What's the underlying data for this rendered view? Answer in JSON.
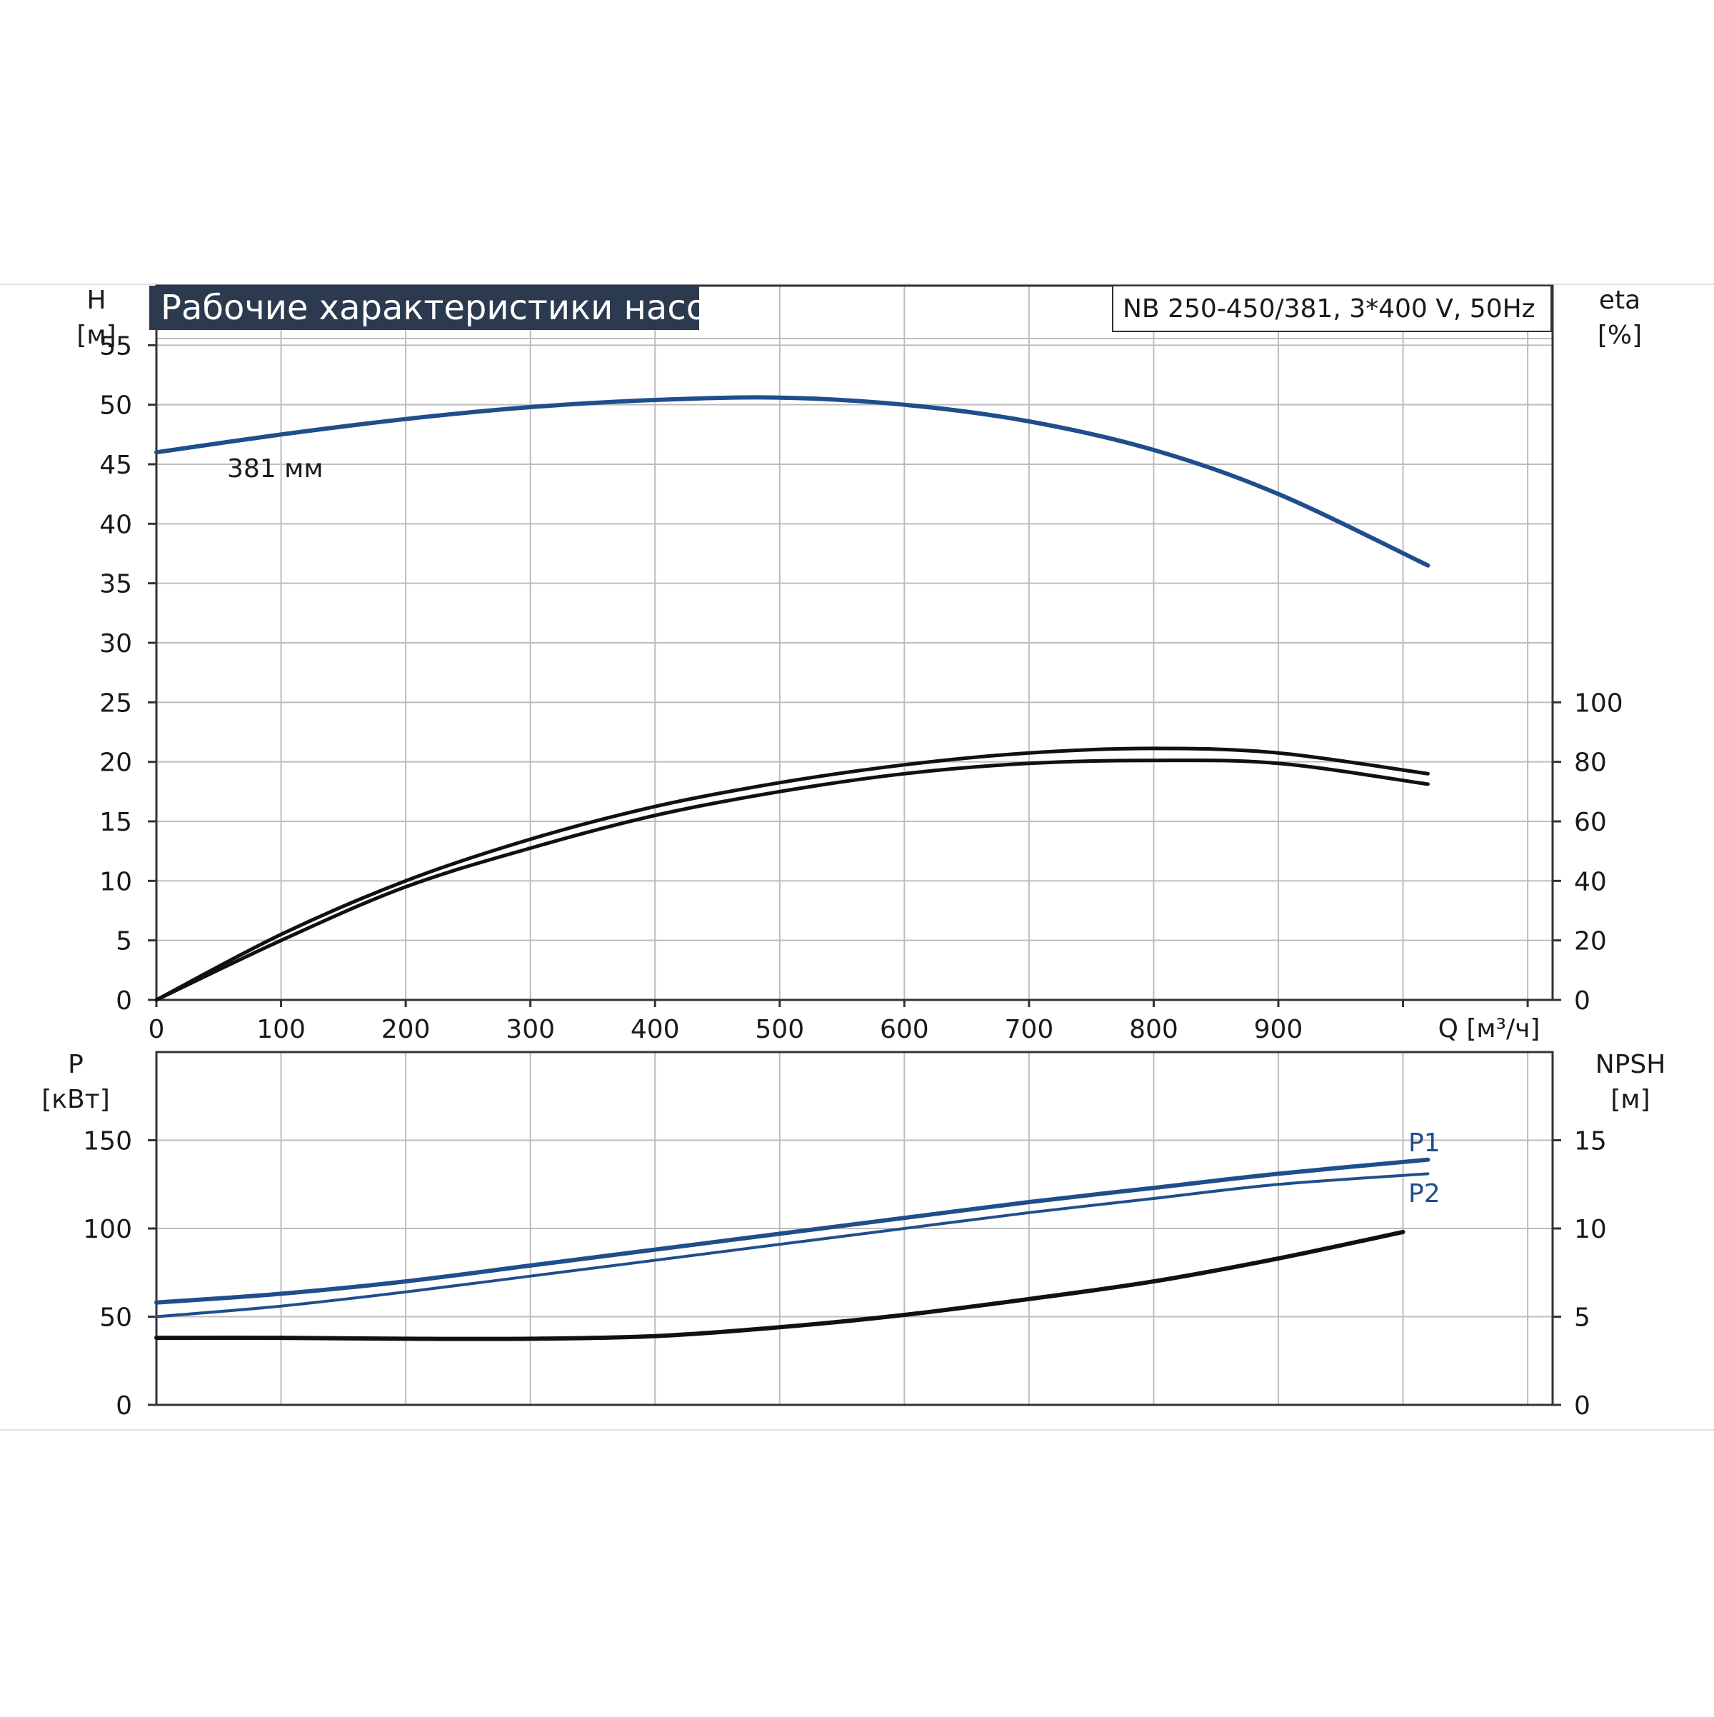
{
  "chart_data": {
    "type": "line",
    "title": "Рабочие характеристики насоса",
    "model_label": "NB 250-450/381, 3*400 V, 50Hz",
    "colors": {
      "blue": "#1f4e8c",
      "black": "#111111",
      "title_bg": "#2b3a4e",
      "grid": "#bdbdbd"
    },
    "top_panel": {
      "x_label": "Q [м³/ч]",
      "x_range": [
        0,
        1120
      ],
      "x_ticks": [
        "0",
        "100",
        "200",
        "300",
        "400",
        "500",
        "600",
        "700",
        "800",
        "900"
      ],
      "left_axis": {
        "label_line1": "H",
        "label_line2": "[м]",
        "range": [
          0,
          60
        ],
        "ticks": [
          "0",
          "5",
          "10",
          "15",
          "20",
          "25",
          "30",
          "35",
          "40",
          "45",
          "50",
          "55"
        ]
      },
      "right_axis": {
        "label_line1": "eta",
        "label_line2": "[%]",
        "range": [
          0,
          240
        ],
        "ticks": [
          "0",
          "20",
          "40",
          "60",
          "80",
          "100"
        ]
      },
      "series": [
        {
          "label": "381 мм",
          "axis": "left",
          "color": "blue",
          "x": [
            0,
            100,
            200,
            300,
            400,
            500,
            600,
            700,
            800,
            900,
            1020
          ],
          "y": [
            46,
            47.5,
            48.8,
            49.8,
            50.4,
            50.6,
            50.0,
            48.6,
            46.2,
            42.5,
            36.5
          ]
        },
        {
          "axis": "right",
          "color": "black",
          "x": [
            0,
            100,
            200,
            300,
            400,
            500,
            600,
            700,
            800,
            900,
            1020
          ],
          "y": [
            0,
            22,
            40,
            54,
            65,
            73,
            79,
            83,
            84.5,
            83,
            76
          ]
        },
        {
          "axis": "right",
          "color": "black",
          "x": [
            0,
            100,
            200,
            300,
            400,
            500,
            600,
            700,
            800,
            900,
            1020
          ],
          "y": [
            0,
            20,
            38,
            51,
            62,
            70,
            76,
            79.5,
            80.5,
            79.5,
            72.5
          ]
        }
      ]
    },
    "bottom_panel": {
      "x_range": [
        0,
        1120
      ],
      "left_axis": {
        "label_line1": "P",
        "label_line2": "[кВт]",
        "range": [
          0,
          200
        ],
        "ticks": [
          "0",
          "50",
          "100",
          "150"
        ]
      },
      "right_axis": {
        "label_line1": "NPSH",
        "label_line2": "[м]",
        "range": [
          0,
          20
        ],
        "ticks": [
          "0",
          "5",
          "10",
          "15"
        ]
      },
      "series": [
        {
          "label": "P1",
          "axis": "left",
          "color": "blue",
          "x": [
            0,
            100,
            200,
            300,
            400,
            500,
            600,
            700,
            800,
            900,
            1020
          ],
          "y": [
            58,
            63,
            70,
            79,
            88,
            97,
            106,
            115,
            123,
            131,
            139
          ]
        },
        {
          "label": "P2",
          "axis": "left",
          "color": "blue",
          "x": [
            0,
            100,
            200,
            300,
            400,
            500,
            600,
            700,
            800,
            900,
            1020
          ],
          "y": [
            50,
            56,
            64,
            73,
            82,
            91,
            100,
            109,
            117,
            125,
            131
          ]
        },
        {
          "axis": "right",
          "color": "black",
          "x": [
            0,
            100,
            200,
            300,
            400,
            500,
            600,
            700,
            800,
            900,
            1000
          ],
          "y": [
            3.8,
            3.8,
            3.75,
            3.75,
            3.9,
            4.4,
            5.1,
            6.0,
            7.0,
            8.3,
            9.8
          ]
        }
      ]
    }
  }
}
